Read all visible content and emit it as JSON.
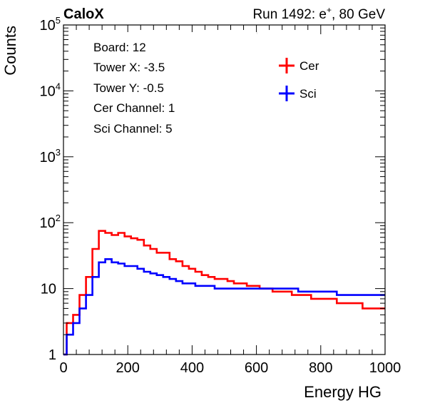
{
  "header": {
    "left_title": "CaloX",
    "right_title_prefix": "Run 1492: e",
    "right_title_sup": "+",
    "right_title_suffix": ", 80 GeV"
  },
  "info_box": {
    "lines": [
      "Board: 12",
      "Tower X: -3.5",
      "Tower Y: -0.5",
      "Cer Channel: 1",
      "Sci Channel: 5"
    ]
  },
  "colors": {
    "cer": "#ff0000",
    "sci": "#0000ff",
    "axis": "#000000",
    "background": "#ffffff"
  },
  "chart_data": {
    "type": "line",
    "drawstyle": "histogram-step",
    "xlabel": "Energy HG",
    "ylabel": "Counts",
    "xlim": [
      0,
      1000
    ],
    "ylim": [
      1,
      100000
    ],
    "yscale": "log",
    "x_ticks": [
      "0",
      "200",
      "400",
      "600",
      "800",
      "1000"
    ],
    "y_ticks": [
      {
        "value": 1,
        "base": "1",
        "exp": ""
      },
      {
        "value": 10,
        "base": "10",
        "exp": ""
      },
      {
        "value": 100,
        "base": "10",
        "exp": "2"
      },
      {
        "value": 1000,
        "base": "10",
        "exp": "3"
      },
      {
        "value": 10000,
        "base": "10",
        "exp": "4"
      },
      {
        "value": 100000,
        "base": "10",
        "exp": "5"
      }
    ],
    "grid": false,
    "legend_position": "top-right",
    "series": [
      {
        "name": "Cer",
        "color": "#ff0000",
        "x": [
          0,
          20,
          40,
          60,
          80,
          100,
          120,
          140,
          160,
          180,
          200,
          220,
          240,
          260,
          280,
          300,
          320,
          340,
          360,
          380,
          400,
          420,
          440,
          460,
          480,
          500,
          520,
          540,
          560,
          580,
          600,
          620,
          640,
          660,
          680,
          700,
          720,
          740,
          760,
          780,
          800,
          820,
          840,
          860,
          880,
          900,
          920,
          940,
          960,
          980,
          1000
        ],
        "values": [
          1,
          3,
          4,
          8,
          15,
          40,
          75,
          70,
          65,
          70,
          62,
          58,
          55,
          45,
          40,
          35,
          35,
          28,
          26,
          22,
          20,
          18,
          16,
          15,
          14,
          14,
          13,
          12,
          12,
          11,
          11,
          10,
          10,
          9,
          9,
          9,
          8,
          8,
          8,
          7,
          7,
          7,
          7,
          6,
          6,
          6,
          6,
          5,
          5,
          5,
          5
        ]
      },
      {
        "name": "Sci",
        "color": "#0000ff",
        "x": [
          0,
          20,
          40,
          60,
          80,
          100,
          120,
          140,
          160,
          180,
          200,
          220,
          240,
          260,
          280,
          300,
          320,
          340,
          360,
          380,
          400,
          420,
          440,
          460,
          480,
          500,
          520,
          540,
          560,
          580,
          600,
          620,
          640,
          660,
          680,
          700,
          720,
          740,
          760,
          780,
          800,
          820,
          840,
          860,
          880,
          900,
          920,
          940,
          960,
          980,
          1000
        ],
        "values": [
          1,
          2,
          3,
          5,
          8,
          15,
          25,
          28,
          25,
          24,
          22,
          22,
          20,
          18,
          17,
          16,
          15,
          14,
          13,
          12,
          12,
          11,
          11,
          11,
          10,
          10,
          10,
          10,
          10,
          10,
          10,
          10,
          10,
          10,
          10,
          10,
          10,
          9,
          9,
          9,
          9,
          9,
          9,
          8,
          8,
          8,
          8,
          8,
          8,
          8,
          8
        ]
      }
    ]
  }
}
